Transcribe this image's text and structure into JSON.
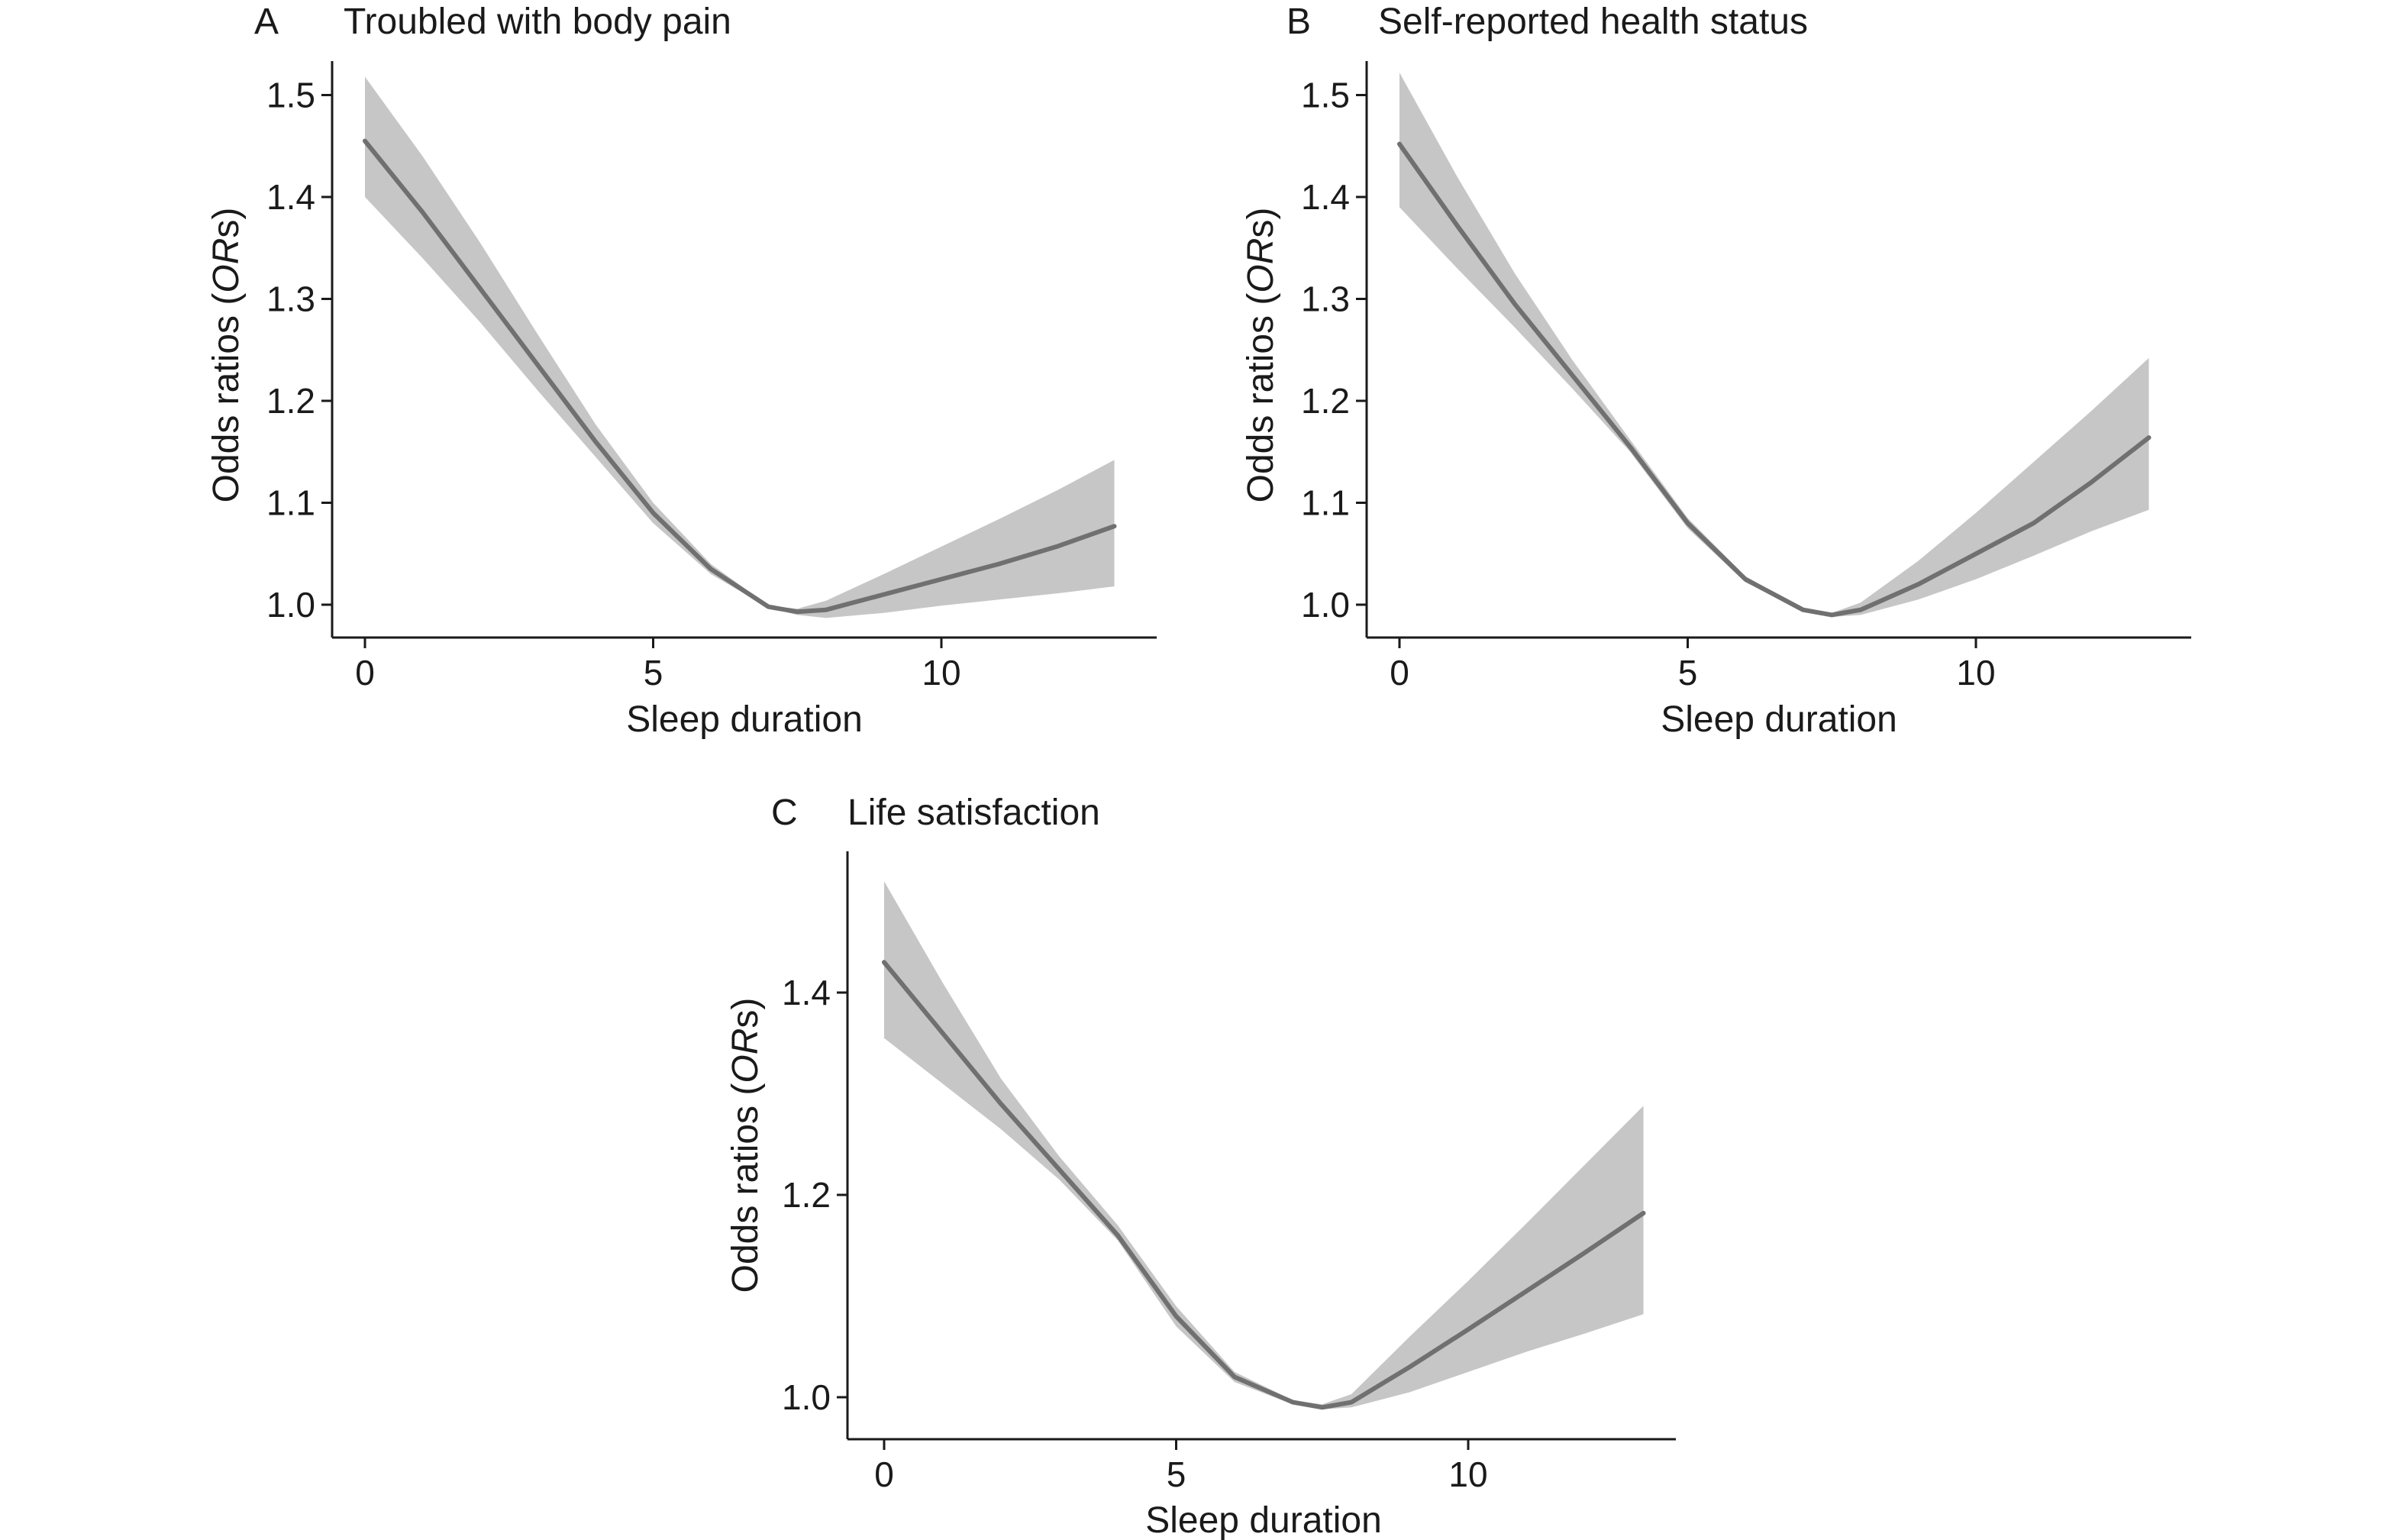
{
  "colors": {
    "line": "#707070",
    "band": "#c6c6c6",
    "axis": "#1a1a1a"
  },
  "chart_data": [
    {
      "type": "line",
      "panel": "A",
      "title": "Troubled with body pain",
      "xlabel": "Sleep duration",
      "ylabel_main": "Odds ratios (",
      "ylabel_italic": "OR",
      "ylabel_tail": "s)",
      "xlim": [
        -0.6,
        13.6
      ],
      "ylim": [
        0.97,
        1.53
      ],
      "xticks": [
        0,
        5,
        10
      ],
      "yticks": [
        1.0,
        1.1,
        1.2,
        1.3,
        1.4,
        1.5
      ],
      "ytick_labels": [
        "1.0",
        "1.1",
        "1.2",
        "1.3",
        "1.4",
        "1.5"
      ],
      "grid": false,
      "series": [
        {
          "x": [
            0,
            1,
            2,
            3,
            4,
            5,
            6,
            7,
            7.5,
            8,
            9,
            10,
            11,
            12,
            13
          ],
          "y": [
            1.455,
            1.385,
            1.31,
            1.235,
            1.16,
            1.09,
            1.035,
            0.998,
            0.993,
            0.995,
            1.01,
            1.025,
            1.04,
            1.057,
            1.077
          ],
          "ci_lower": [
            1.4,
            1.34,
            1.277,
            1.21,
            1.145,
            1.08,
            1.03,
            0.997,
            0.99,
            0.987,
            0.992,
            0.999,
            1.005,
            1.011,
            1.018
          ],
          "ci_upper": [
            1.518,
            1.44,
            1.355,
            1.265,
            1.177,
            1.1,
            1.04,
            0.999,
            0.996,
            1.004,
            1.03,
            1.057,
            1.084,
            1.112,
            1.142
          ]
        }
      ]
    },
    {
      "type": "line",
      "panel": "B",
      "title": "Self-reported health status",
      "xlabel": "Sleep duration",
      "ylabel_main": "Odds ratios (",
      "ylabel_italic": "OR",
      "ylabel_tail": "s)",
      "xlim": [
        -0.6,
        13.6
      ],
      "ylim": [
        0.97,
        1.53
      ],
      "xticks": [
        0,
        5,
        10
      ],
      "yticks": [
        1.0,
        1.1,
        1.2,
        1.3,
        1.4,
        1.5
      ],
      "ytick_labels": [
        "1.0",
        "1.1",
        "1.2",
        "1.3",
        "1.4",
        "1.5"
      ],
      "grid": false,
      "series": [
        {
          "x": [
            0,
            1,
            2,
            3,
            4,
            5,
            6,
            7,
            7.5,
            8,
            9,
            10,
            11,
            12,
            13
          ],
          "y": [
            1.452,
            1.372,
            1.295,
            1.225,
            1.155,
            1.08,
            1.025,
            0.995,
            0.99,
            0.995,
            1.02,
            1.05,
            1.08,
            1.12,
            1.164
          ],
          "ci_lower": [
            1.39,
            1.33,
            1.272,
            1.212,
            1.15,
            1.075,
            1.022,
            0.994,
            0.988,
            0.99,
            1.005,
            1.025,
            1.048,
            1.072,
            1.093
          ],
          "ci_upper": [
            1.522,
            1.42,
            1.325,
            1.24,
            1.162,
            1.085,
            1.028,
            0.996,
            0.992,
            1.002,
            1.043,
            1.09,
            1.14,
            1.19,
            1.242
          ]
        }
      ]
    },
    {
      "type": "line",
      "panel": "C",
      "title": "Life satisfaction",
      "xlabel": "Sleep duration",
      "ylabel_main": "Odds ratios (",
      "ylabel_italic": "OR",
      "ylabel_tail": "s)",
      "xlim": [
        -0.6,
        13.6
      ],
      "ylim": [
        0.97,
        1.53
      ],
      "xticks": [
        0,
        5,
        10
      ],
      "yticks": [
        1.0,
        1.2,
        1.4
      ],
      "ytick_labels": [
        "1.0",
        "1.2",
        "1.4"
      ],
      "grid": false,
      "series": [
        {
          "x": [
            0,
            1,
            2,
            3,
            4,
            5,
            6,
            7,
            7.5,
            8,
            9,
            10,
            11,
            12,
            13
          ],
          "y": [
            1.43,
            1.36,
            1.29,
            1.225,
            1.16,
            1.08,
            1.02,
            0.995,
            0.99,
            0.995,
            1.03,
            1.067,
            1.105,
            1.143,
            1.182
          ],
          "ci_lower": [
            1.355,
            1.31,
            1.265,
            1.215,
            1.155,
            1.07,
            1.015,
            0.993,
            0.988,
            0.99,
            1.005,
            1.025,
            1.045,
            1.063,
            1.082
          ],
          "ci_upper": [
            1.51,
            1.41,
            1.315,
            1.238,
            1.17,
            1.09,
            1.025,
            0.997,
            0.993,
            1.003,
            1.06,
            1.115,
            1.172,
            1.23,
            1.288
          ]
        }
      ]
    }
  ]
}
